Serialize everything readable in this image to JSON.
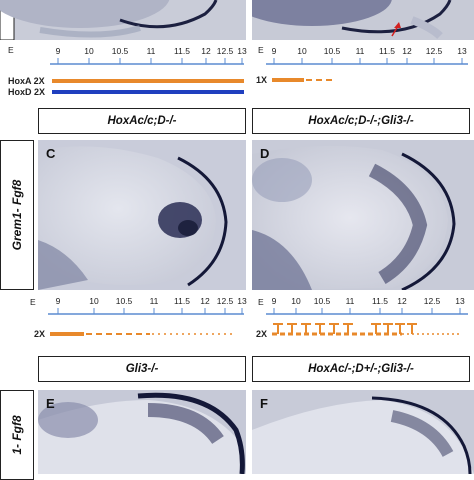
{
  "panels": {
    "C": "C",
    "D": "D",
    "E": "E",
    "F": "F"
  },
  "genotypes": {
    "C": "HoxAc/c;D-/-",
    "D": "HoxAc/c;D-/-;Gli3-/-",
    "E": "Gli3-/-",
    "F": "HoxAc/-;D+/-;Gli3-/-"
  },
  "row_labels": {
    "middle": "Grem1- Fgf8",
    "bottom": "1- Fgf8"
  },
  "timelines": {
    "unit_label": "E",
    "ticks": [
      "9",
      "10",
      "10.5",
      "11",
      "11.5",
      "12",
      "12.5",
      "13"
    ],
    "top_left": {
      "lines": [
        {
          "label": "HoxA 2X",
          "color": "#e8892b"
        },
        {
          "label": "HoxD 2X",
          "color": "#1f3fbf"
        }
      ]
    },
    "top_right": {
      "lines": [
        {
          "label": "1X",
          "color": "#e8892b"
        }
      ]
    },
    "mid_left": {
      "lines": [
        {
          "label": "2X",
          "color": "#e8892b"
        }
      ]
    },
    "mid_right": {
      "lines": [
        {
          "label": "2X",
          "color": "#e8892b"
        }
      ]
    }
  },
  "colors": {
    "orange": "#e8892b",
    "blue": "#1f3fbf",
    "red_arrow": "#d22020",
    "tick_blue": "#5b8bd0"
  }
}
